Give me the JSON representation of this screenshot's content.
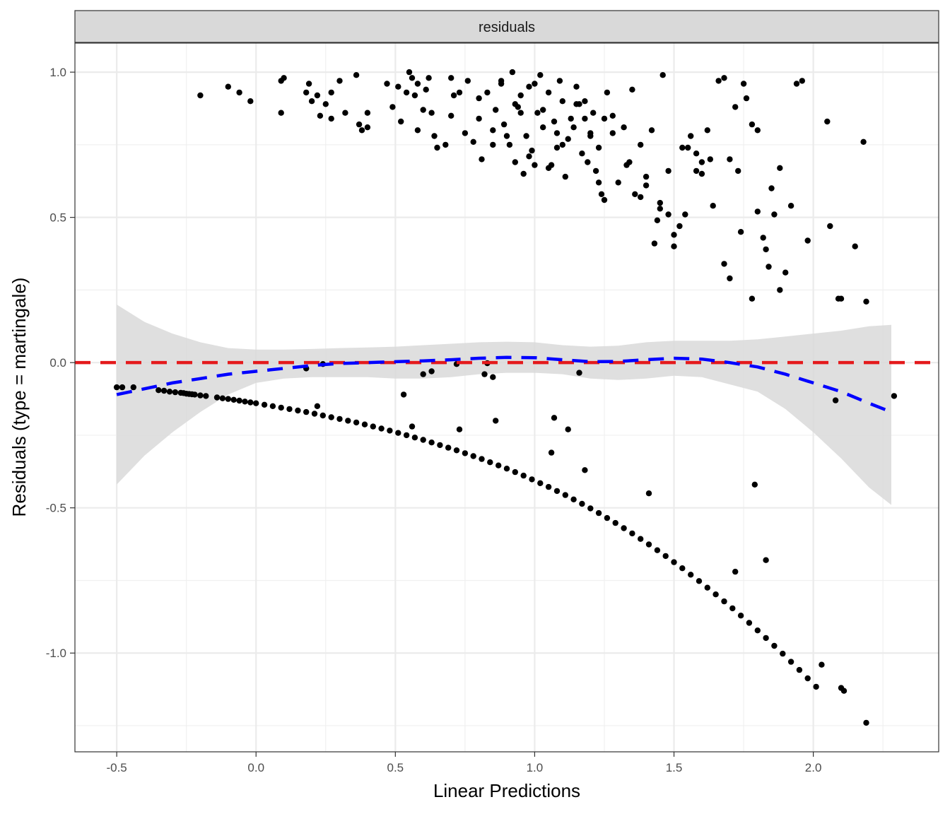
{
  "chart_data": {
    "type": "scatter",
    "facet_label": "residuals",
    "xlabel": "Linear Predictions",
    "ylabel": "Residuals (type = martingale)",
    "xlim": [
      -0.65,
      2.45
    ],
    "ylim": [
      -1.34,
      1.1
    ],
    "x_ticks": [
      -0.5,
      0.0,
      0.5,
      1.0,
      1.5,
      2.0
    ],
    "x_tick_labels": [
      "-0.5",
      "0.0",
      "0.5",
      "1.0",
      "1.5",
      "2.0"
    ],
    "y_ticks": [
      -1.0,
      -0.5,
      0.0,
      0.5,
      1.0
    ],
    "y_tick_labels": [
      "-1.0",
      "-0.5",
      "0.0",
      "0.5",
      "1.0"
    ],
    "grid": true,
    "colors": {
      "points": "#000000",
      "smooth_line": "#0000ff",
      "reference_line": "#e41a1c",
      "ribbon": "#d9d9d9",
      "strip_bg": "#d9d9d9"
    },
    "reference_line": {
      "y": 0
    },
    "smooth": {
      "x": [
        -0.5,
        -0.4,
        -0.3,
        -0.2,
        -0.1,
        0.0,
        0.1,
        0.2,
        0.3,
        0.4,
        0.5,
        0.6,
        0.7,
        0.8,
        0.9,
        1.0,
        1.1,
        1.2,
        1.3,
        1.4,
        1.5,
        1.6,
        1.7,
        1.8,
        1.9,
        2.0,
        2.1,
        2.2,
        2.28
      ],
      "y": [
        -0.11,
        -0.09,
        -0.07,
        -0.055,
        -0.04,
        -0.03,
        -0.02,
        -0.01,
        -0.003,
        0.0,
        0.003,
        0.006,
        0.01,
        0.015,
        0.018,
        0.017,
        0.01,
        0.003,
        0.004,
        0.01,
        0.015,
        0.012,
        0.0,
        -0.015,
        -0.04,
        -0.07,
        -0.1,
        -0.14,
        -0.17
      ],
      "lower": [
        -0.42,
        -0.32,
        -0.24,
        -0.17,
        -0.11,
        -0.07,
        -0.055,
        -0.05,
        -0.05,
        -0.05,
        -0.055,
        -0.055,
        -0.05,
        -0.04,
        -0.035,
        -0.035,
        -0.04,
        -0.055,
        -0.06,
        -0.055,
        -0.045,
        -0.05,
        -0.075,
        -0.1,
        -0.16,
        -0.24,
        -0.33,
        -0.43,
        -0.49
      ],
      "upper": [
        0.2,
        0.14,
        0.1,
        0.07,
        0.05,
        0.045,
        0.045,
        0.047,
        0.05,
        0.052,
        0.055,
        0.06,
        0.065,
        0.07,
        0.072,
        0.07,
        0.06,
        0.055,
        0.058,
        0.07,
        0.075,
        0.075,
        0.075,
        0.08,
        0.09,
        0.1,
        0.11,
        0.125,
        0.13
      ]
    },
    "series": [
      {
        "x": [
          -0.5,
          -0.48,
          -0.44,
          -0.35,
          -0.33,
          -0.31,
          -0.29,
          -0.27,
          -0.26,
          -0.25,
          -0.24,
          -0.23,
          -0.22,
          -0.2,
          -0.18,
          -0.14,
          -0.12,
          -0.1,
          -0.08,
          -0.06,
          -0.04,
          -0.02,
          0.0,
          0.03,
          0.06,
          0.09,
          0.12,
          0.15,
          0.18,
          0.21,
          0.24,
          0.27,
          0.3,
          0.33,
          0.36,
          0.39,
          0.42,
          0.45,
          0.48,
          0.51,
          0.54,
          0.57,
          0.6,
          0.63,
          0.66,
          0.69,
          0.72,
          0.75,
          0.78,
          0.81,
          0.84,
          0.87,
          0.9,
          0.93,
          0.96,
          0.99,
          1.02,
          1.05,
          1.08,
          1.11,
          1.14,
          1.17,
          1.2,
          1.23,
          1.26,
          1.29,
          1.32,
          1.35,
          1.38,
          1.41,
          1.44,
          1.47,
          1.5,
          1.53,
          1.56,
          1.59,
          1.62,
          1.65,
          1.68,
          1.71,
          1.74,
          1.77,
          1.8,
          1.83,
          1.86,
          1.89,
          1.92,
          1.95,
          1.98,
          2.01,
          2.03,
          2.1,
          2.11,
          2.19
        ],
        "y": [
          -0.085,
          -0.085,
          -0.085,
          -0.095,
          -0.097,
          -0.1,
          -0.102,
          -0.104,
          -0.105,
          -0.107,
          -0.108,
          -0.109,
          -0.11,
          -0.113,
          -0.115,
          -0.12,
          -0.123,
          -0.125,
          -0.128,
          -0.131,
          -0.134,
          -0.137,
          -0.14,
          -0.145,
          -0.15,
          -0.155,
          -0.16,
          -0.165,
          -0.17,
          -0.176,
          -0.182,
          -0.188,
          -0.194,
          -0.2,
          -0.206,
          -0.213,
          -0.22,
          -0.227,
          -0.234,
          -0.242,
          -0.25,
          -0.258,
          -0.266,
          -0.275,
          -0.284,
          -0.293,
          -0.302,
          -0.312,
          -0.322,
          -0.332,
          -0.343,
          -0.354,
          -0.365,
          -0.377,
          -0.389,
          -0.402,
          -0.415,
          -0.428,
          -0.442,
          -0.456,
          -0.471,
          -0.486,
          -0.502,
          -0.518,
          -0.535,
          -0.552,
          -0.57,
          -0.588,
          -0.607,
          -0.626,
          -0.646,
          -0.666,
          -0.687,
          -0.708,
          -0.73,
          -0.752,
          -0.775,
          -0.798,
          -0.822,
          -0.846,
          -0.871,
          -0.896,
          -0.922,
          -0.948,
          -0.975,
          -1.002,
          -1.03,
          -1.058,
          -1.087,
          -1.116,
          -1.04,
          -1.12,
          -1.13,
          -1.24
        ]
      },
      {
        "x": [
          -0.2,
          -0.1,
          -0.06,
          -0.02,
          0.09,
          0.1,
          0.09,
          0.18,
          0.19,
          0.2,
          0.22,
          0.23,
          0.25,
          0.27,
          0.3,
          0.32,
          0.27,
          0.37,
          0.38,
          0.36,
          0.4,
          0.4,
          0.47,
          0.49,
          0.51,
          0.52,
          0.55,
          0.54,
          0.56,
          0.57,
          0.58,
          0.6,
          0.61,
          0.62,
          0.63,
          0.58,
          0.64,
          0.65,
          0.68,
          0.7,
          0.71,
          0.73,
          0.76,
          0.78,
          0.8,
          0.81,
          0.83,
          0.85,
          0.86,
          0.88,
          0.89,
          0.9,
          0.91,
          0.92,
          0.93,
          0.94,
          0.95,
          0.96,
          0.97,
          0.98,
          0.99,
          1.0,
          1.01,
          1.02,
          1.03,
          1.05,
          1.06,
          1.07,
          1.08,
          1.09,
          1.1,
          1.11,
          1.12,
          1.14,
          1.15,
          1.16,
          1.17,
          1.18,
          1.19,
          1.2,
          1.21,
          1.22,
          1.23,
          1.24,
          1.25,
          1.26,
          1.28,
          1.3,
          1.32,
          1.34,
          1.36,
          1.38,
          1.4,
          1.42,
          1.44,
          1.45,
          1.46,
          1.48,
          1.5,
          1.52,
          1.54,
          1.56,
          1.58,
          1.6,
          1.62,
          1.64,
          1.66,
          1.68,
          1.7,
          1.72,
          1.74,
          1.76,
          1.78,
          1.8,
          1.82,
          1.84,
          1.86,
          1.88,
          1.9,
          1.92,
          1.94,
          1.96,
          1.98,
          2.05,
          2.06,
          2.09,
          2.15,
          2.18,
          2.19,
          0.88,
          0.93,
          0.98,
          1.03,
          1.08,
          1.13,
          1.18,
          1.23,
          1.28,
          1.33,
          1.38,
          1.43,
          1.48,
          1.53,
          1.58,
          1.63,
          1.68,
          1.73,
          1.78,
          1.83,
          1.88,
          0.7,
          0.75,
          0.8,
          0.85,
          0.95,
          1.0,
          1.05,
          1.1,
          1.15,
          1.2,
          1.25,
          1.35,
          1.4,
          1.45,
          1.5,
          1.55,
          1.6,
          1.7,
          1.75,
          1.8,
          1.85
        ],
        "y": [
          0.92,
          0.95,
          0.93,
          0.9,
          0.86,
          0.98,
          0.97,
          0.93,
          0.96,
          0.9,
          0.92,
          0.85,
          0.89,
          0.84,
          0.97,
          0.86,
          0.93,
          0.82,
          0.8,
          0.99,
          0.86,
          0.81,
          0.96,
          0.88,
          0.95,
          0.83,
          1.0,
          0.93,
          0.98,
          0.92,
          0.96,
          0.87,
          0.94,
          0.98,
          0.86,
          0.8,
          0.78,
          0.74,
          0.75,
          0.98,
          0.92,
          0.93,
          0.97,
          0.76,
          0.84,
          0.7,
          0.93,
          0.8,
          0.87,
          0.97,
          0.82,
          0.78,
          0.75,
          1.0,
          0.69,
          0.88,
          0.92,
          0.65,
          0.78,
          0.95,
          0.73,
          0.96,
          0.86,
          0.99,
          0.81,
          0.93,
          0.68,
          0.83,
          0.74,
          0.97,
          0.9,
          0.64,
          0.77,
          0.81,
          0.95,
          0.89,
          0.72,
          0.84,
          0.69,
          0.79,
          0.86,
          0.66,
          0.74,
          0.58,
          0.56,
          0.93,
          0.85,
          0.62,
          0.81,
          0.69,
          0.58,
          0.75,
          0.64,
          0.8,
          0.49,
          0.53,
          0.99,
          0.66,
          0.4,
          0.47,
          0.51,
          0.78,
          0.72,
          0.65,
          0.8,
          0.54,
          0.97,
          0.34,
          0.29,
          0.88,
          0.45,
          0.91,
          0.22,
          0.52,
          0.43,
          0.33,
          0.51,
          0.25,
          0.31,
          0.54,
          0.96,
          0.97,
          0.42,
          0.83,
          0.47,
          0.22,
          0.4,
          0.76,
          0.21,
          0.96,
          0.89,
          0.71,
          0.87,
          0.79,
          0.84,
          0.9,
          0.62,
          0.79,
          0.68,
          0.57,
          0.41,
          0.51,
          0.74,
          0.66,
          0.7,
          0.98,
          0.66,
          0.82,
          0.39,
          0.67,
          0.85,
          0.79,
          0.91,
          0.75,
          0.86,
          0.68,
          0.67,
          0.75,
          0.89,
          0.78,
          0.84,
          0.94,
          0.61,
          0.55,
          0.44,
          0.74,
          0.69,
          0.7,
          0.96,
          0.8,
          0.6
        ]
      },
      {
        "x": [
          0.18,
          0.22,
          0.24,
          0.53,
          0.56,
          0.6,
          0.63,
          0.72,
          0.73,
          0.82,
          0.83,
          0.85,
          0.86,
          1.06,
          1.07,
          1.12,
          1.16,
          1.18,
          1.41,
          1.72,
          1.79,
          1.83,
          2.08,
          2.1,
          2.29
        ],
        "y": [
          -0.02,
          -0.15,
          -0.005,
          -0.11,
          -0.22,
          -0.04,
          -0.03,
          -0.005,
          -0.23,
          -0.04,
          -0.002,
          -0.05,
          -0.2,
          -0.31,
          -0.19,
          -0.23,
          -0.035,
          -0.37,
          -0.45,
          -0.72,
          -0.42,
          -0.68,
          -0.13,
          0.22,
          -0.115
        ]
      }
    ]
  }
}
